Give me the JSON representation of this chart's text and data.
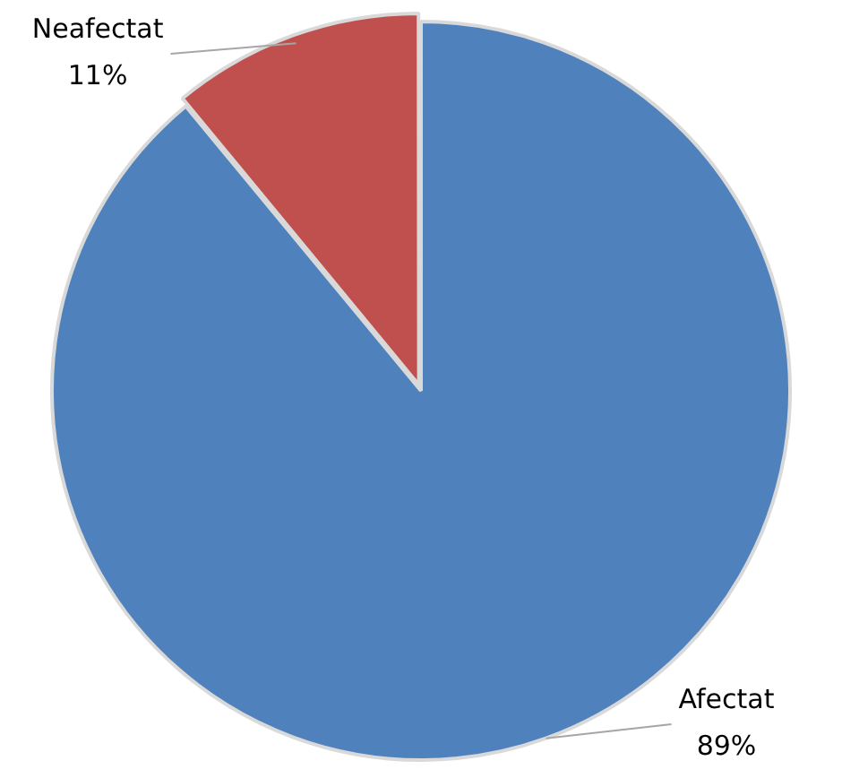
{
  "chart_data": {
    "type": "pie",
    "categories": [
      "Afectat",
      "Neafectat"
    ],
    "values": [
      89,
      11
    ],
    "colors": [
      "#4f81bd",
      "#c0504d"
    ],
    "value_labels": [
      "89%",
      "11%"
    ],
    "legend": false
  }
}
